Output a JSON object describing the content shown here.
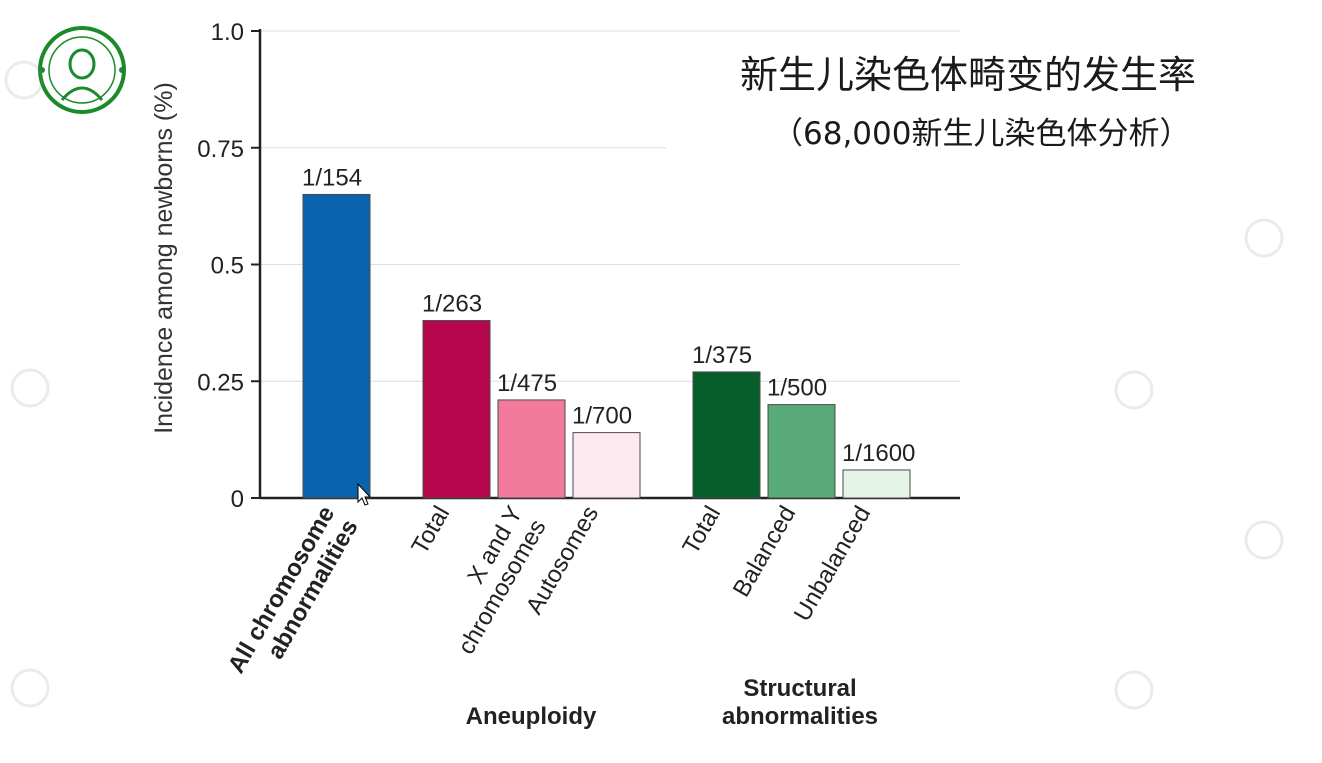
{
  "header": {
    "title": "新生儿染色体畸变的发生率",
    "subtitle": "（68,000新生儿染色体分析）"
  },
  "logo": {
    "icon": "portrait-seal-icon",
    "color": "#1a8a2a"
  },
  "chart_data": {
    "type": "bar",
    "ylabel": "Incidence among newborns (%)",
    "ylim": [
      0,
      1.0
    ],
    "yticks": [
      0,
      0.25,
      0.5,
      0.75,
      1.0
    ],
    "ytick_labels": [
      "0",
      "0.25",
      "0.5",
      "0.75",
      "1.0"
    ],
    "grid": "horizontal",
    "bars": [
      {
        "label": "All chromosome abnormalities",
        "value": 0.65,
        "data_label": "1/154",
        "color": "#0a64ad"
      },
      {
        "label": "Total",
        "value": 0.38,
        "data_label": "1/263",
        "color": "#b5064c"
      },
      {
        "label": "X and Y chromosomes",
        "value": 0.21,
        "data_label": "1/475",
        "color": "#f27a9c"
      },
      {
        "label": "Autosomes",
        "value": 0.14,
        "data_label": "1/700",
        "color": "#fde8f0"
      },
      {
        "label": "Total",
        "value": 0.27,
        "data_label": "1/375",
        "color": "#075e2a"
      },
      {
        "label": "Balanced",
        "value": 0.2,
        "data_label": "1/500",
        "color": "#5aaa77"
      },
      {
        "label": "Unbalanced",
        "value": 0.06,
        "data_label": "1/1600",
        "color": "#e4f5e8"
      }
    ],
    "groups": [
      {
        "label": "Aneuploidy"
      },
      {
        "label": "Structural abnormalities"
      }
    ]
  }
}
